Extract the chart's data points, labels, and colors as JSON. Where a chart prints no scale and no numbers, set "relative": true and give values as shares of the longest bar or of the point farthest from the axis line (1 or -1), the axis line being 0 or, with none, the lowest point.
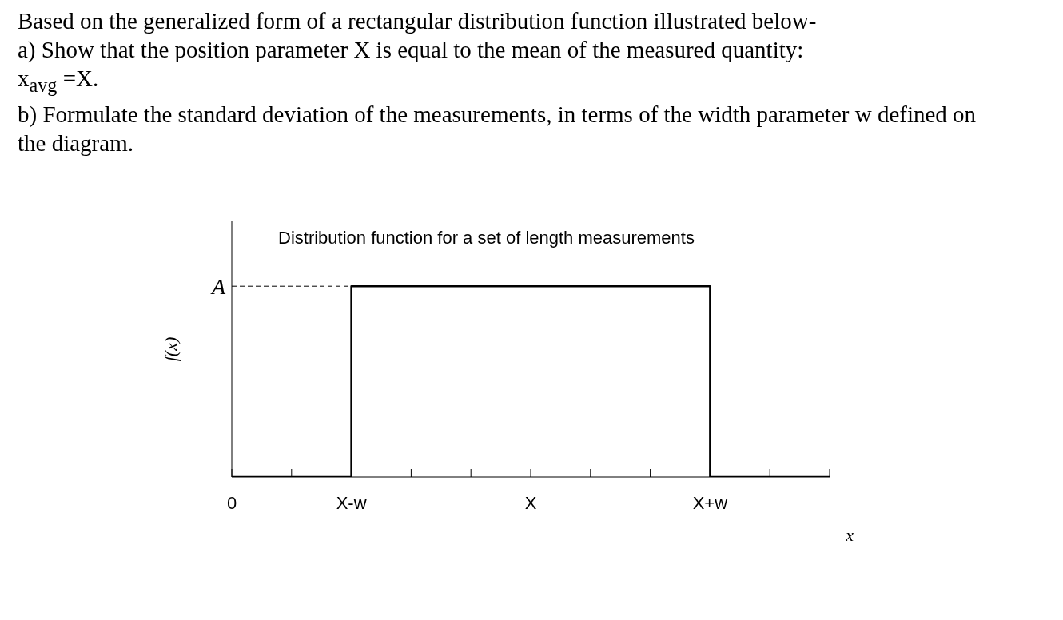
{
  "chart_data": {
    "type": "step",
    "title": "Distribution function for a set of length measurements",
    "xlabel": "x",
    "ylabel": "f(x)",
    "annotations": [
      "Based on the generalized form of a rectangular distribution function illustrated below-",
      "a) Show that the position parameter X is equal to the mean of the measured quantity:",
      "x$_{avg}$ =X.",
      "b) Formulate the standard deviation of the measurements, in terms of the width parameter w defined on the diagram."
    ],
    "relative": true,
    "categories": [
      "0",
      null,
      "X-w",
      null,
      null,
      "X",
      null,
      null,
      "X+w",
      null,
      null
    ],
    "series": [
      {
        "color": "#000000",
        "values": [
          0,
          0,
          1,
          1,
          1,
          1,
          1,
          1,
          0,
          0,
          0
        ]
      }
    ],
    "ref_lines": [
      {
        "axis": "y",
        "value": 1,
        "label": "A",
        "line_style": "dashed",
        "color": "#000000"
      }
    ],
    "grid": false,
    "legend": false,
    "marker": "none",
    "line_style": "solid"
  }
}
